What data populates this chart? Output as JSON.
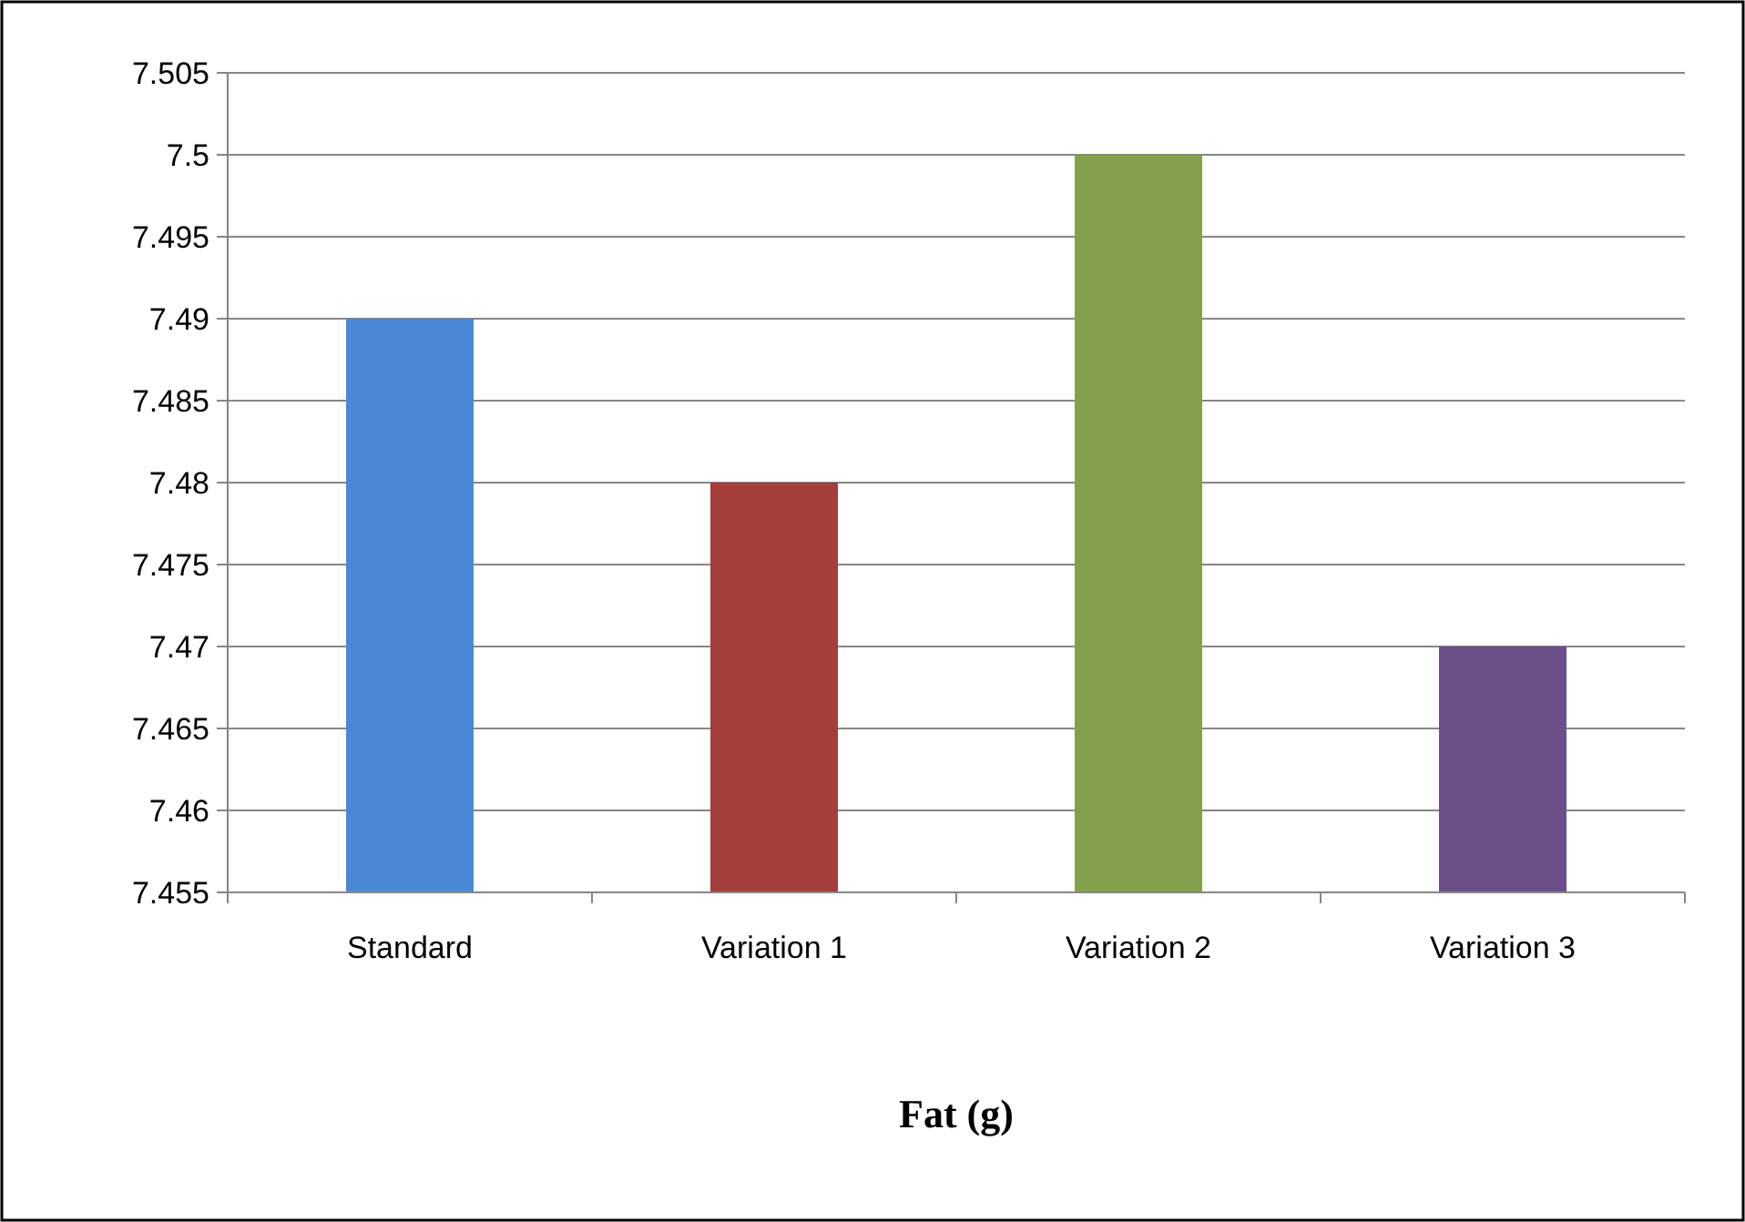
{
  "chart_data": {
    "type": "bar",
    "title": "Fat (g)",
    "categories": [
      "Standard",
      "Variation 1",
      "Variation 2",
      "Variation 3"
    ],
    "values": [
      7.49,
      7.48,
      7.5,
      7.47
    ],
    "colors": [
      "#4a88d6",
      "#a33e3b",
      "#83a14b",
      "#6b5089"
    ],
    "ylim": [
      7.455,
      7.505
    ],
    "yticks": [
      7.455,
      7.46,
      7.465,
      7.47,
      7.475,
      7.48,
      7.485,
      7.49,
      7.495,
      7.5,
      7.505
    ],
    "grid": "y"
  }
}
